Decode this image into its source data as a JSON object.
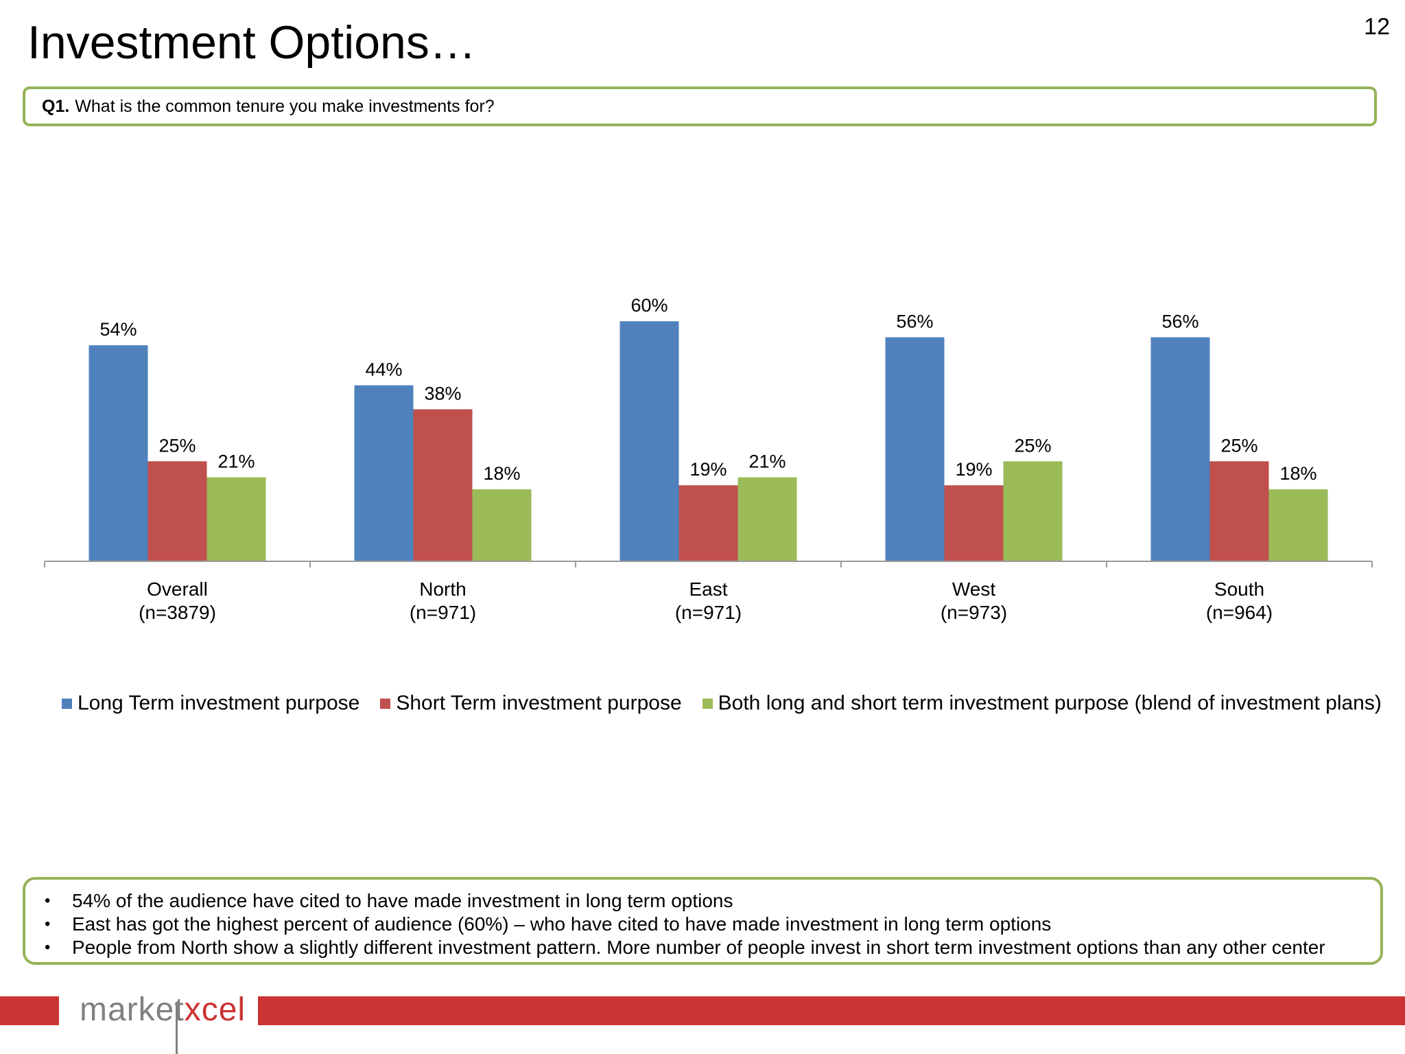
{
  "page": {
    "title": "Investment Options…",
    "page_number": "12"
  },
  "question": {
    "label": "Q1.",
    "text": "What is the common tenure you make investments for?"
  },
  "chart_data": {
    "type": "bar",
    "categories": [
      "Overall",
      "North",
      "East",
      "West",
      "South"
    ],
    "category_sublabels": [
      "(n=3879)",
      "(n=971)",
      "(n=971)",
      "(n=973)",
      "(n=964)"
    ],
    "series": [
      {
        "name": "Long Term investment purpose",
        "values": [
          54,
          44,
          60,
          56,
          56
        ],
        "labels": [
          "54%",
          "44%",
          "60%",
          "56%",
          "56%"
        ],
        "color": "#4f81bd"
      },
      {
        "name": "Short Term investment purpose",
        "values": [
          25,
          38,
          19,
          19,
          25
        ],
        "labels": [
          "25%",
          "38%",
          "19%",
          "19%",
          "25%"
        ],
        "color": "#c0504d"
      },
      {
        "name": "Both long and short term investment purpose (blend of investment plans)",
        "values": [
          21,
          18,
          21,
          25,
          18
        ],
        "labels": [
          "21%",
          "18%",
          "21%",
          "25%",
          "18%"
        ],
        "color": "#9bbb59"
      }
    ],
    "ylim": [
      0,
      75
    ],
    "grid": false,
    "legend_position": "bottom"
  },
  "notes": [
    "54% of the audience have cited to have made investment in long term options",
    "East has got the highest percent of audience (60%) – who have cited to have made investment in long term options",
    "People from North show a slightly different investment pattern. More number of people invest in short term investment options than any other center"
  ],
  "logo": {
    "part1": "market",
    "part2": "xcel"
  }
}
